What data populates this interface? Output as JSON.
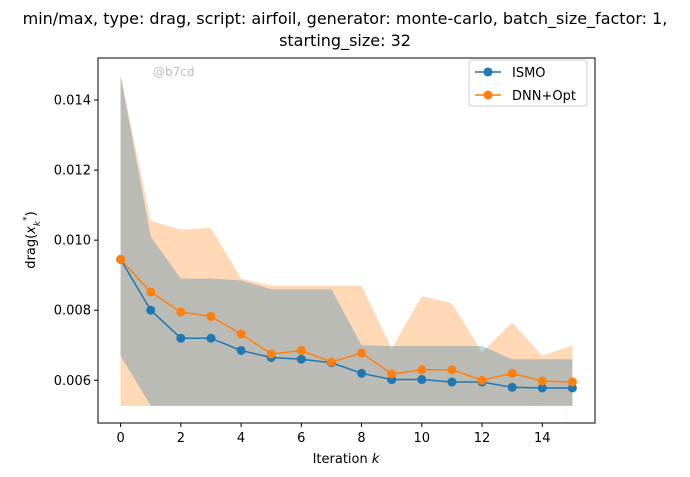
{
  "chart_data": {
    "type": "line",
    "title": "min/max, type: drag, script: airfoil, generator: monte-carlo, batch_size_factor: 1,",
    "subtitle": "starting_size: 32",
    "xlabel": "Iteration k",
    "ylabel": "drag(x*_k)",
    "xlim": [
      -0.75,
      15.75
    ],
    "ylim": [
      0.00478,
      0.0152
    ],
    "xticks": [
      0,
      2,
      4,
      6,
      8,
      10,
      12,
      14
    ],
    "yticks": [
      0.006,
      0.008,
      0.01,
      0.012,
      0.014
    ],
    "ytick_labels": [
      "0.006",
      "0.008",
      "0.010",
      "0.012",
      "0.014"
    ],
    "grid": false,
    "legend_position": "top-right",
    "x": [
      0,
      1,
      2,
      3,
      4,
      5,
      6,
      7,
      8,
      9,
      10,
      11,
      12,
      13,
      14,
      15
    ],
    "series": [
      {
        "name": "ISMO",
        "color": "#1f77b4",
        "values": [
          0.00945,
          0.008,
          0.0072,
          0.0072,
          0.00685,
          0.00665,
          0.0066,
          0.0065,
          0.0062,
          0.00602,
          0.00602,
          0.00595,
          0.00595,
          0.0058,
          0.00578,
          0.00578
        ],
        "band_min": [
          0.0067,
          0.00527,
          0.00527,
          0.00527,
          0.00527,
          0.00527,
          0.00527,
          0.00527,
          0.00527,
          0.00527,
          0.00527,
          0.00527,
          0.00527,
          0.00527,
          0.00527,
          0.00527
        ],
        "band_max": [
          0.0147,
          0.0101,
          0.0089,
          0.0089,
          0.00885,
          0.0086,
          0.0086,
          0.0086,
          0.007,
          0.00698,
          0.00698,
          0.00698,
          0.00698,
          0.0066,
          0.0066,
          0.0066
        ]
      },
      {
        "name": "DNN+Opt",
        "color": "#ff7f0e",
        "values": [
          0.00945,
          0.00852,
          0.00795,
          0.00782,
          0.00732,
          0.00675,
          0.00685,
          0.00652,
          0.00678,
          0.00618,
          0.0063,
          0.0063,
          0.006,
          0.0062,
          0.00598,
          0.00595
        ],
        "band_min": [
          0.00527,
          0.00527,
          0.00527,
          0.00527,
          0.00527,
          0.00527,
          0.00527,
          0.00527,
          0.00527,
          0.00527,
          0.00527,
          0.00527,
          0.00527,
          0.00527,
          0.00527,
          0.00527
        ],
        "band_max": [
          0.0147,
          0.01055,
          0.0103,
          0.01035,
          0.0089,
          0.0087,
          0.0087,
          0.0087,
          0.0087,
          0.0069,
          0.0084,
          0.0082,
          0.0068,
          0.00765,
          0.0067,
          0.007
        ]
      }
    ],
    "watermark": "@b7cd",
    "footnote_lines": [
      "...",
      "...",
      "...",
      "..."
    ]
  }
}
